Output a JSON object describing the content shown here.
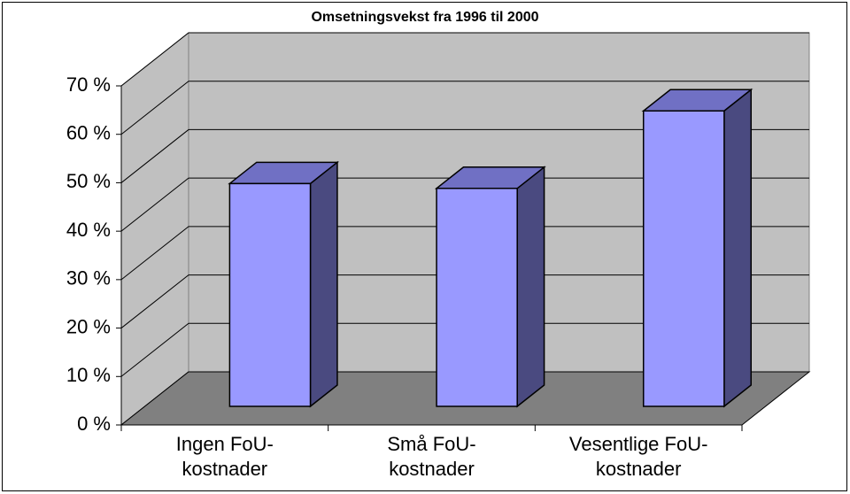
{
  "chart_data": {
    "type": "bar3d",
    "title": "Omsetningsvekst fra 1996 til 2000",
    "categories": [
      [
        "Ingen FoU-",
        "kostnader"
      ],
      [
        "Små FoU-",
        "kostnader"
      ],
      [
        "Vesentlige FoU-",
        "kostnader"
      ]
    ],
    "values": [
      46,
      45,
      61
    ],
    "color": "#9999ff",
    "ylim": [
      0,
      70
    ],
    "yticks": [
      {
        "value": 0,
        "label": "0 %"
      },
      {
        "value": 10,
        "label": "10 %"
      },
      {
        "value": 20,
        "label": "20 %"
      },
      {
        "value": 30,
        "label": "30 %"
      },
      {
        "value": 40,
        "label": "40 %"
      },
      {
        "value": 50,
        "label": "50 %"
      },
      {
        "value": 60,
        "label": "60 %"
      },
      {
        "value": 70,
        "label": "70 %"
      }
    ],
    "grid": true
  }
}
